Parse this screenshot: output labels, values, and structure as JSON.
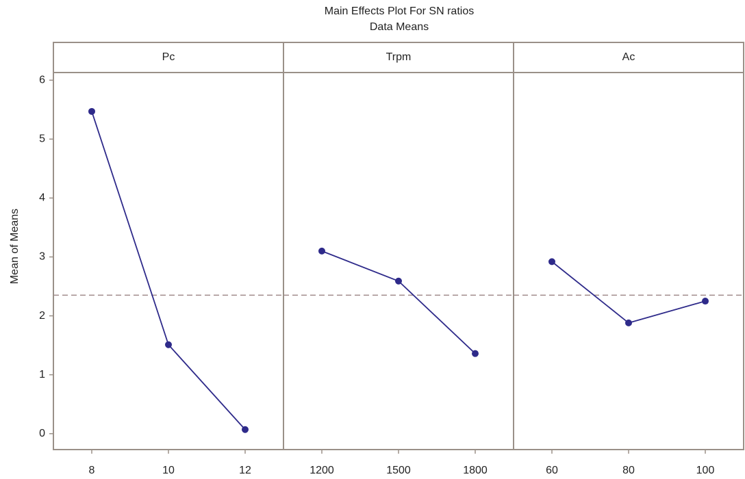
{
  "chart_data": {
    "type": "line",
    "title": "Main Effects Plot For SN ratios",
    "subtitle": "Data Means",
    "ylabel": "Mean of Means",
    "ylim": [
      -0.27,
      6.13
    ],
    "yticks": [
      0,
      1,
      2,
      3,
      4,
      5,
      6
    ],
    "reference_line": 2.35,
    "color": "#2e2a8a",
    "reference_color": "#a08a8a",
    "panels": [
      {
        "name": "Pc",
        "categories": [
          "8",
          "10",
          "12"
        ],
        "values": [
          5.47,
          1.51,
          0.07
        ]
      },
      {
        "name": "Trpm",
        "categories": [
          "1200",
          "1500",
          "1800"
        ],
        "values": [
          3.1,
          2.59,
          1.36
        ]
      },
      {
        "name": "Ac",
        "categories": [
          "60",
          "80",
          "100"
        ],
        "values": [
          2.92,
          1.88,
          2.25
        ]
      }
    ]
  }
}
